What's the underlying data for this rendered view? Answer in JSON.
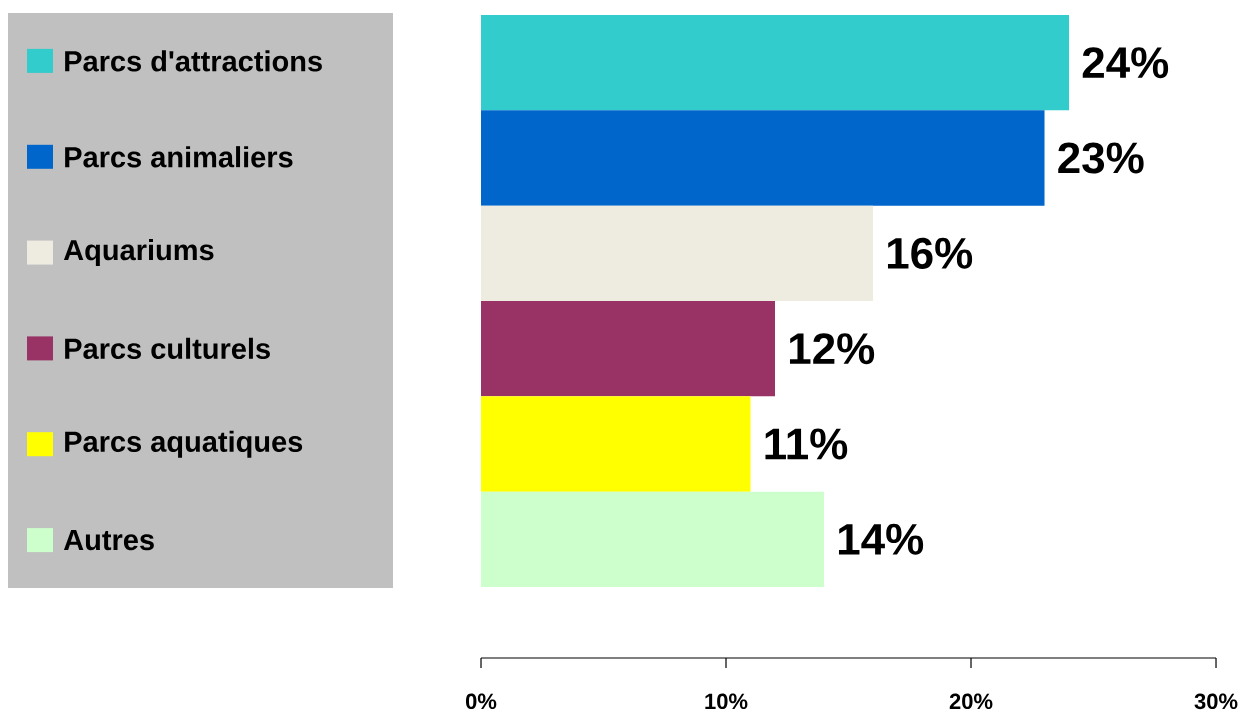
{
  "chart_data": {
    "type": "bar",
    "orientation": "horizontal",
    "categories": [
      "Parcs d'attractions",
      "Parcs animaliers",
      "Aquariums",
      "Parcs culturels",
      "Parcs aquatiques",
      "Autres"
    ],
    "values": [
      24,
      23,
      16,
      12,
      11,
      14
    ],
    "colors": [
      "#33cccc",
      "#0066cc",
      "#eeebe0",
      "#993366",
      "#ffff00",
      "#ccffcc"
    ],
    "value_labels": [
      "24%",
      "23%",
      "16%",
      "12%",
      "11%",
      "14%"
    ],
    "xlim": [
      0,
      30
    ],
    "xticks": [
      {
        "value": 0,
        "label": "0%"
      },
      {
        "value": 10,
        "label": "10%"
      },
      {
        "value": 20,
        "label": "20%"
      },
      {
        "value": 30,
        "label": "30%"
      }
    ]
  }
}
